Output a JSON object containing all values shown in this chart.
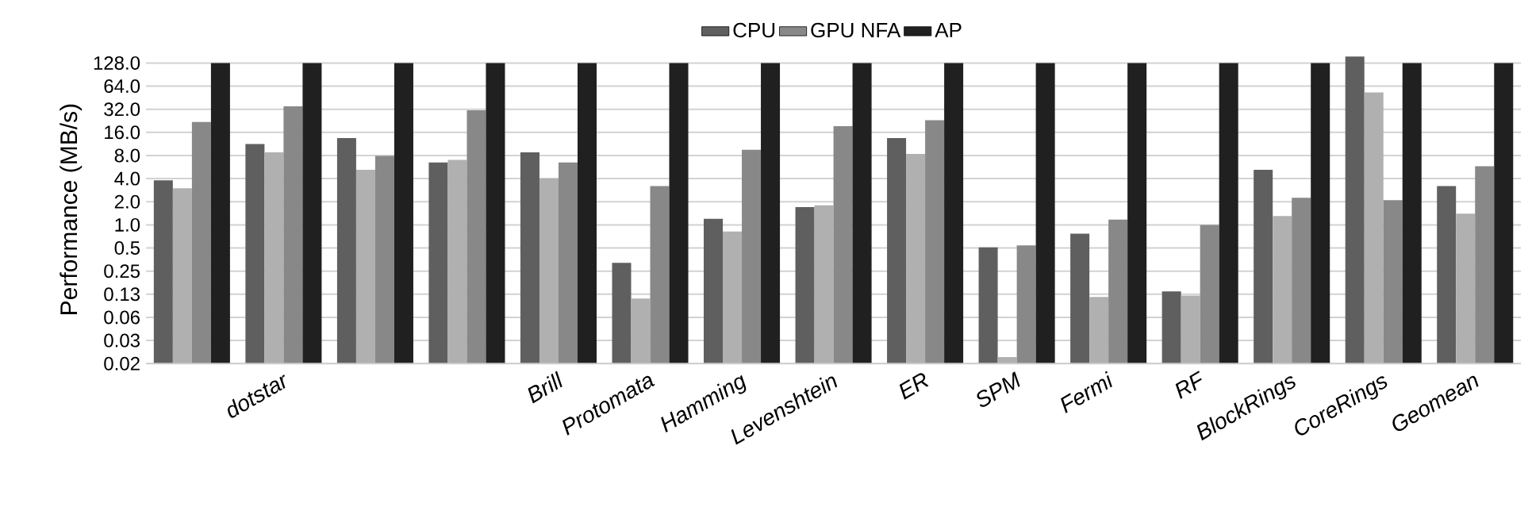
{
  "chart_data": {
    "type": "bar",
    "ylabel": "Performance (MB/s)",
    "categories": [
      null,
      "dotstar",
      null,
      null,
      "Brill",
      "Protomata",
      "Hamming",
      "Levenshtein",
      "ER",
      "SPM",
      "Fermi",
      "RF",
      "BlockRings",
      "CoreRings",
      "Geomean"
    ],
    "series": [
      {
        "name": "CPU",
        "color": "#5f5f5f",
        "values": [
          3.8,
          11.3,
          13.5,
          6.5,
          8.8,
          0.32,
          1.2,
          1.7,
          13.5,
          0.51,
          0.77,
          0.136,
          5.2,
          155,
          3.2
        ]
      },
      {
        "color": "#b0b0b0",
        "values": [
          3.0,
          8.8,
          5.2,
          7.0,
          4.0,
          0.11,
          0.82,
          1.8,
          8.4,
          0.019,
          0.115,
          0.12,
          1.3,
          53,
          1.4
        ]
      },
      {
        "name": "GPU NFA",
        "color": "#888888",
        "values": [
          21.8,
          35,
          7.9,
          31,
          6.5,
          3.2,
          9.5,
          19.3,
          23,
          0.54,
          1.17,
          1.0,
          2.25,
          2.1,
          5.8
        ]
      },
      {
        "name": "AP",
        "color": "#202020",
        "values": [
          128,
          128,
          128,
          128,
          128,
          128,
          128,
          128,
          128,
          128,
          128,
          128,
          128,
          128,
          128
        ]
      }
    ],
    "log": "y",
    "ylim": [
      0.015625,
      160
    ],
    "yticks": [
      {
        "value": 0.015625,
        "label": "0.02"
      },
      {
        "value": 0.03125,
        "label": "0.03"
      },
      {
        "value": 0.0625,
        "label": "0.06"
      },
      {
        "value": 0.125,
        "label": "0.13"
      },
      {
        "value": 0.25,
        "label": "0.25"
      },
      {
        "value": 0.5,
        "label": "0.5"
      },
      {
        "value": 1,
        "label": "1.0"
      },
      {
        "value": 2,
        "label": "2.0"
      },
      {
        "value": 4,
        "label": "4.0"
      },
      {
        "value": 8,
        "label": "8.0"
      },
      {
        "value": 16,
        "label": "16.0"
      },
      {
        "value": 32,
        "label": "32.0"
      },
      {
        "value": 64,
        "label": "64.0"
      },
      {
        "value": 128,
        "label": "128.0"
      }
    ],
    "grid": "y",
    "legend": "top"
  }
}
